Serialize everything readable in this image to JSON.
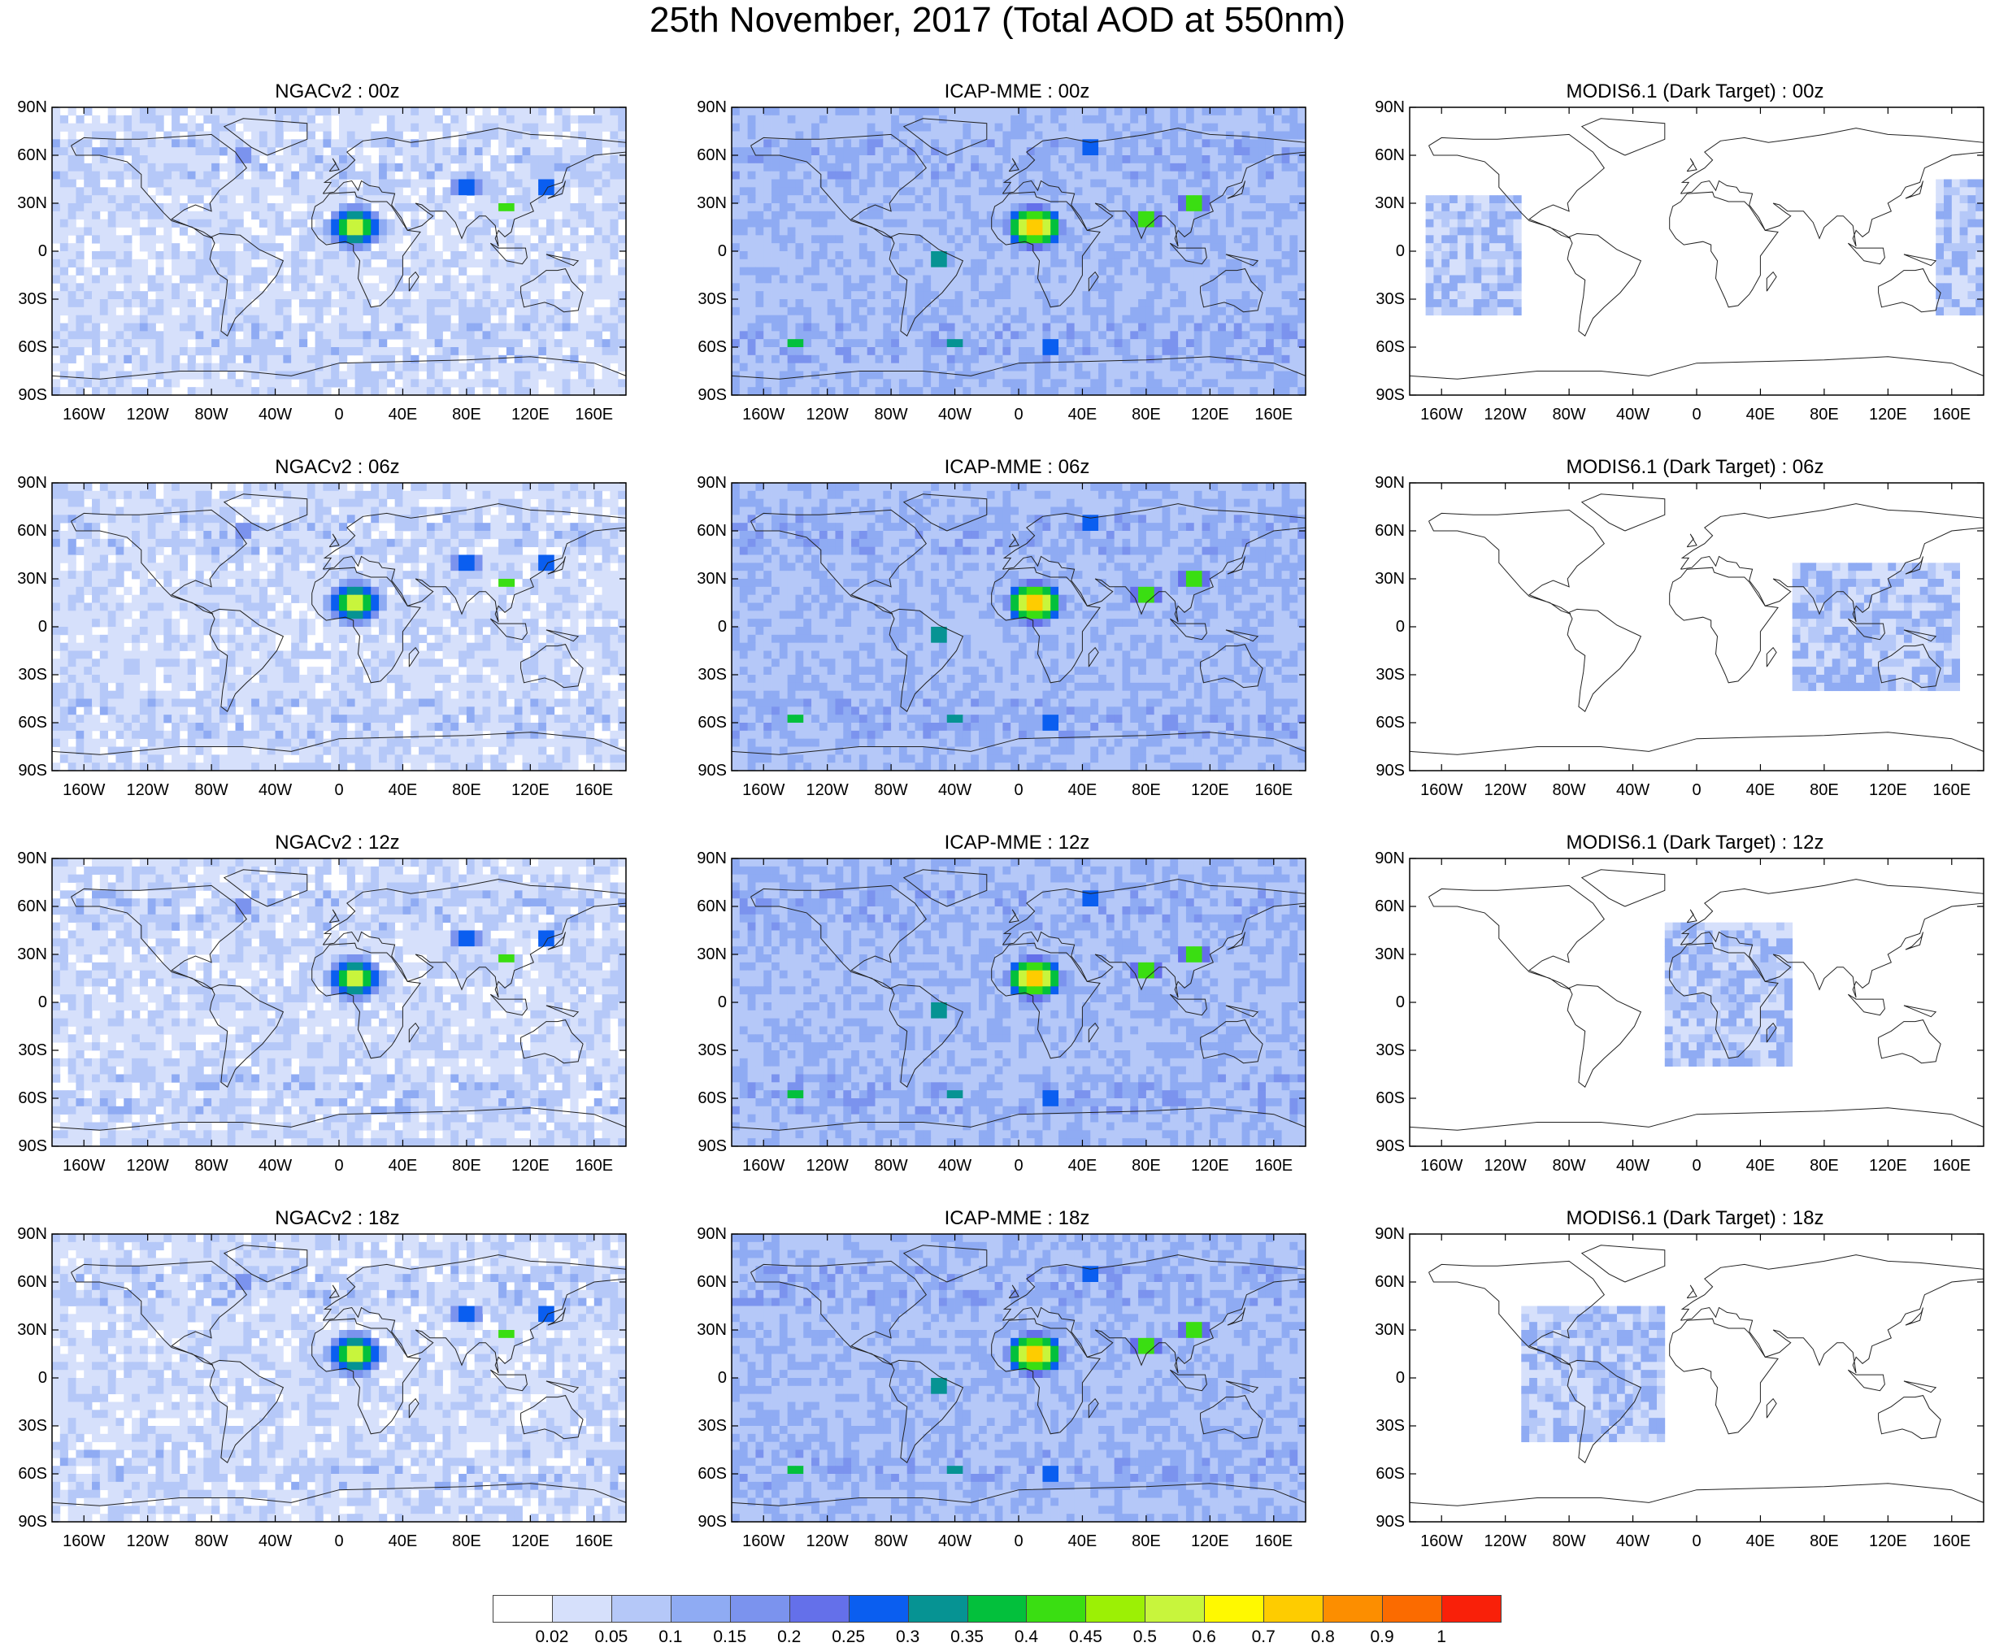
{
  "figure": {
    "title": "25th November, 2017 (Total AOD at 550nm)"
  },
  "axes": {
    "y_ticks": [
      "90N",
      "60N",
      "30N",
      "0",
      "30S",
      "60S",
      "90S"
    ],
    "x_ticks": [
      "160W",
      "120W",
      "80W",
      "40W",
      "0",
      "40E",
      "80E",
      "120E",
      "160E"
    ],
    "x_tick_values": [
      -160,
      -120,
      -80,
      -40,
      0,
      40,
      80,
      120,
      160
    ],
    "y_tick_values": [
      90,
      60,
      30,
      0,
      -30,
      -60,
      -90
    ],
    "lon_range": [
      -180,
      180
    ],
    "lat_range": [
      -90,
      90
    ]
  },
  "panels": [
    {
      "title": "NGACv2 : 00z",
      "model": "ngac",
      "hour": "00z"
    },
    {
      "title": "ICAP-MME : 00z",
      "model": "icap",
      "hour": "00z"
    },
    {
      "title": "MODIS6.1 (Dark Target) : 00z",
      "model": "modis",
      "hour": "00z"
    },
    {
      "title": "NGACv2 : 06z",
      "model": "ngac",
      "hour": "06z"
    },
    {
      "title": "ICAP-MME : 06z",
      "model": "icap",
      "hour": "06z"
    },
    {
      "title": "MODIS6.1 (Dark Target) : 06z",
      "model": "modis",
      "hour": "06z"
    },
    {
      "title": "NGACv2 : 12z",
      "model": "ngac",
      "hour": "12z"
    },
    {
      "title": "ICAP-MME : 12z",
      "model": "icap",
      "hour": "12z"
    },
    {
      "title": "MODIS6.1 (Dark Target) : 12z",
      "model": "modis",
      "hour": "12z"
    },
    {
      "title": "NGACv2 : 18z",
      "model": "ngac",
      "hour": "18z"
    },
    {
      "title": "ICAP-MME : 18z",
      "model": "icap",
      "hour": "18z"
    },
    {
      "title": "MODIS6.1 (Dark Target) : 18z",
      "model": "modis",
      "hour": "18z"
    }
  ],
  "colorbar": {
    "labels": [
      "0.02",
      "0.05",
      "0.1",
      "0.15",
      "0.2",
      "0.25",
      "0.3",
      "0.35",
      "0.4",
      "0.45",
      "0.5",
      "0.6",
      "0.7",
      "0.8",
      "0.9",
      "1"
    ],
    "colors": [
      "#ffffff",
      "#d6e0fb",
      "#b5c8f8",
      "#8fabf3",
      "#7b93ee",
      "#6470ea",
      "#0a5ef0",
      "#069393",
      "#03c03c",
      "#3ade12",
      "#9cf005",
      "#c8f53c",
      "#fff900",
      "#fecc00",
      "#fc8e00",
      "#fb6b00",
      "#f92009"
    ]
  },
  "chart_data": {
    "type": "heatmap",
    "title": "25th November, 2017 (Total AOD at 550nm)",
    "variable": "Total AOD at 550nm",
    "rows": [
      "00z",
      "06z",
      "12z",
      "18z"
    ],
    "columns": [
      "NGACv2",
      "ICAP-MME",
      "MODIS6.1 (Dark Target)"
    ],
    "levels": [
      0.02,
      0.05,
      0.1,
      0.15,
      0.2,
      0.25,
      0.3,
      0.35,
      0.4,
      0.45,
      0.5,
      0.6,
      0.7,
      0.8,
      0.9,
      1
    ],
    "modis_swaths": [
      {
        "hour": "00z",
        "regions": [
          {
            "lon": [
              -170,
              -110
            ],
            "lat": [
              -40,
              35
            ]
          },
          {
            "lon": [
              150,
              180
            ],
            "lat": [
              -40,
              45
            ]
          }
        ]
      },
      {
        "hour": "06z",
        "regions": [
          {
            "lon": [
              60,
              165
            ],
            "lat": [
              -40,
              40
            ]
          }
        ]
      },
      {
        "hour": "12z",
        "regions": [
          {
            "lon": [
              -20,
              60
            ],
            "lat": [
              -40,
              50
            ]
          }
        ]
      },
      {
        "hour": "18z",
        "regions": [
          {
            "lon": [
              -110,
              -20
            ],
            "lat": [
              -40,
              45
            ]
          }
        ]
      }
    ]
  }
}
